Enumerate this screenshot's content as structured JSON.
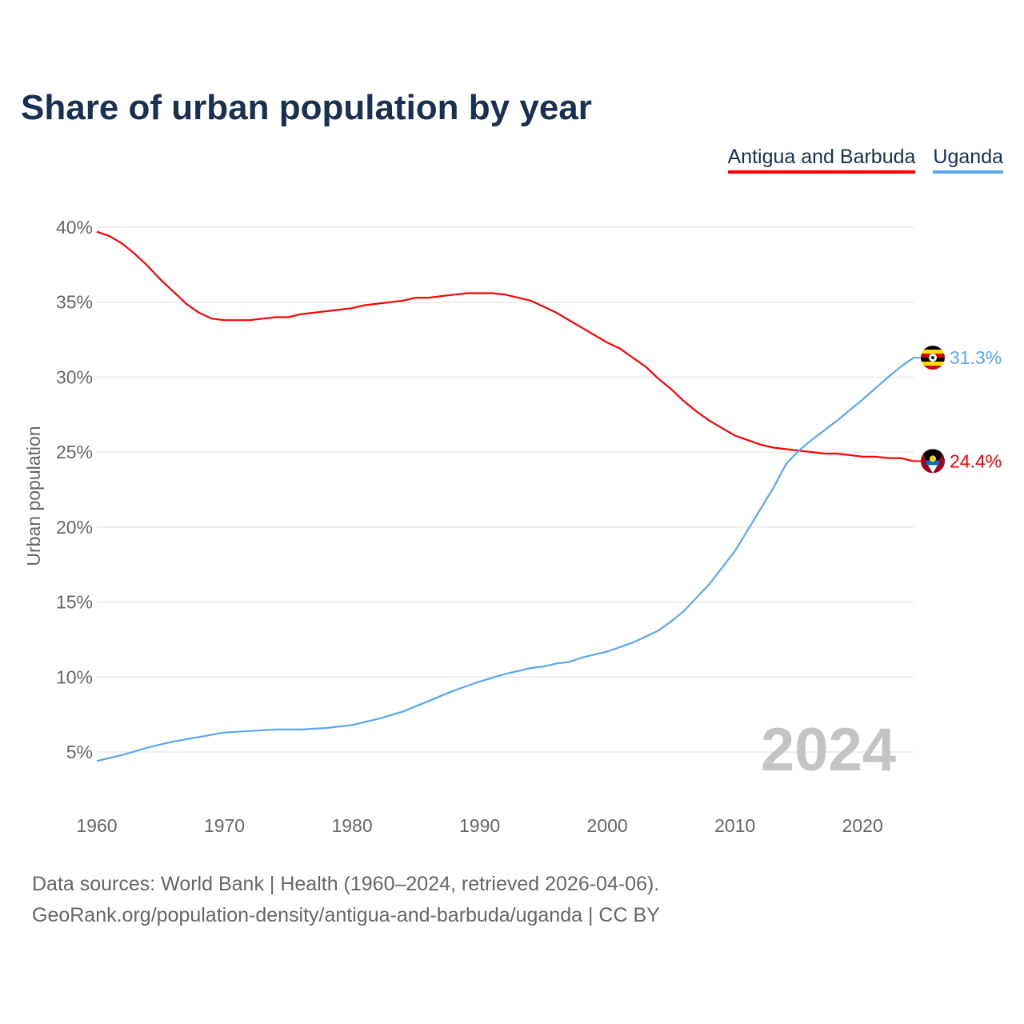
{
  "title": "Share of urban population by year",
  "legend": [
    {
      "label": "Antigua and Barbuda",
      "color": "#ff0000"
    },
    {
      "label": "Uganda",
      "color": "#5aa7ee"
    }
  ],
  "watermark_year": "2024",
  "footer": {
    "line1": "Data sources: World Bank | Health (1960–2024, retrieved 2026-04-06).",
    "line2": "GeoRank.org/population-density/antigua-and-barbuda/uganda | CC BY"
  },
  "chart_data": {
    "type": "line",
    "title": "Share of urban population by year",
    "xlabel": "",
    "ylabel": "Urban population",
    "xlim": [
      1960,
      2024
    ],
    "ylim": [
      5,
      40
    ],
    "grid": true,
    "legend_position": "top-right",
    "x_ticks": [
      "1960",
      "1970",
      "1980",
      "1990",
      "2000",
      "2010",
      "2020"
    ],
    "y_ticks": [
      "5%",
      "10%",
      "15%",
      "20%",
      "25%",
      "30%",
      "35%",
      "40%"
    ],
    "x_start": 1960,
    "series": [
      {
        "name": "Antigua and Barbuda",
        "color": "#ff0000",
        "end_label": "24.4%",
        "flag": "antigua-flag",
        "values": [
          39.7,
          39.4,
          38.9,
          38.2,
          37.4,
          36.5,
          35.7,
          34.9,
          34.3,
          33.9,
          33.8,
          33.8,
          33.8,
          33.9,
          34.0,
          34.0,
          34.2,
          34.3,
          34.4,
          34.5,
          34.6,
          34.8,
          34.9,
          35.0,
          35.1,
          35.3,
          35.3,
          35.4,
          35.5,
          35.6,
          35.6,
          35.6,
          35.5,
          35.3,
          35.1,
          34.7,
          34.3,
          33.8,
          33.3,
          32.8,
          32.3,
          31.9,
          31.3,
          30.7,
          29.9,
          29.2,
          28.4,
          27.7,
          27.1,
          26.6,
          26.1,
          25.8,
          25.5,
          25.3,
          25.2,
          25.1,
          25.0,
          24.9,
          24.9,
          24.8,
          24.7,
          24.7,
          24.6,
          24.6,
          24.4
        ]
      },
      {
        "name": "Uganda",
        "color": "#5aa7ee",
        "end_label": "31.3%",
        "flag": "uganda-flag",
        "values": [
          4.4,
          4.6,
          4.8,
          5.05,
          5.3,
          5.5,
          5.7,
          5.85,
          6.0,
          6.15,
          6.3,
          6.35,
          6.4,
          6.45,
          6.5,
          6.5,
          6.5,
          6.55,
          6.6,
          6.7,
          6.8,
          7.0,
          7.2,
          7.45,
          7.7,
          8.05,
          8.4,
          8.75,
          9.1,
          9.4,
          9.7,
          9.95,
          10.2,
          10.4,
          10.6,
          10.7,
          10.9,
          11.0,
          11.3,
          11.5,
          11.7,
          12.0,
          12.3,
          12.7,
          13.1,
          13.7,
          14.4,
          15.3,
          16.2,
          17.3,
          18.4,
          19.8,
          21.2,
          22.6,
          24.2,
          25.1,
          25.8,
          26.45,
          27.1,
          27.8,
          28.5,
          29.25,
          30.0,
          30.7,
          31.3
        ]
      }
    ]
  }
}
